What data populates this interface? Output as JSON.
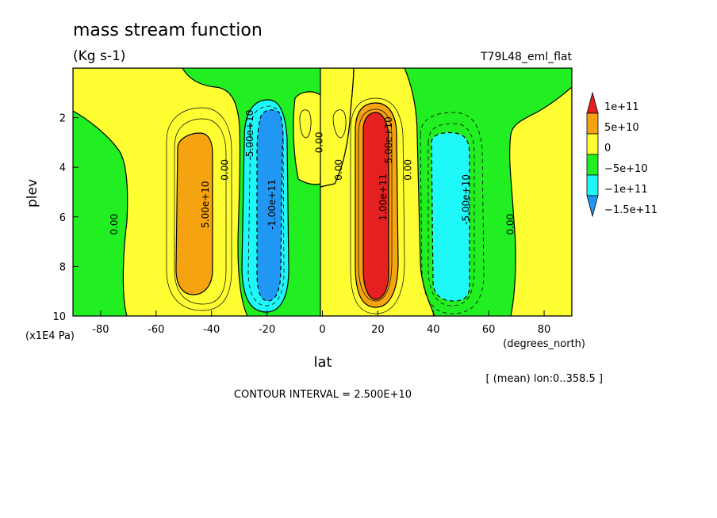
{
  "chart_data": {
    "type": "heatmap",
    "title": "mass stream function",
    "units": "(Kg s-1)",
    "experiment": "T79L48_eml_flat",
    "xlabel": "lat",
    "xunits": "(degrees_north)",
    "ylabel": "plev",
    "yunits": "(x1E4 Pa)",
    "xlim": [
      -90,
      90
    ],
    "ylim": [
      10,
      0
    ],
    "xticks": [
      -80,
      -60,
      -40,
      -20,
      0,
      20,
      40,
      60,
      80
    ],
    "yticks": [
      2,
      4,
      6,
      8,
      10
    ],
    "averaging_note": "[ (mean) lon:0..358.5 ]",
    "contour_interval_label": "CONTOUR INTERVAL = 2.500E+10",
    "colorbar": {
      "labels": [
        "1e+11",
        "5e+10",
        "0",
        "−5e+10",
        "−1e+11",
        "−1.5e+11"
      ],
      "colors": [
        "#e52020",
        "#f5a311",
        "#fefe33",
        "#21ef21",
        "#1ff8f8",
        "#2097f3"
      ]
    },
    "features": [
      {
        "kind": "zero",
        "lat": 0,
        "plev": 0.5,
        "label": "0.00"
      },
      {
        "kind": "min",
        "lat": -18,
        "plev": 5.5,
        "value": -100000000000.0,
        "label": "-1.00e+11"
      },
      {
        "kind": "max",
        "lat": -42,
        "plev": 5.5,
        "value": 75000000000.0,
        "label": "5.00e+10"
      },
      {
        "kind": "max",
        "lat": 20,
        "plev": 5.0,
        "value": 120000000000.0,
        "label": "1.00e+11"
      },
      {
        "kind": "min",
        "lat": 45,
        "plev": 5.5,
        "value": -75000000000.0,
        "label": "-5.00e+10"
      }
    ],
    "contour_labels": [
      {
        "text": "0.00",
        "lat": -74,
        "plev": 6.3
      },
      {
        "text": "0.00",
        "lat": -34,
        "plev": 4.1
      },
      {
        "text": "5.00e+10",
        "lat": -41,
        "plev": 5.5
      },
      {
        "text": "-5.00e+10",
        "lat": -25,
        "plev": 2.7
      },
      {
        "text": "-1.00e+11",
        "lat": -17,
        "plev": 5.5
      },
      {
        "text": "0.00",
        "lat": 0,
        "plev": 3.0
      },
      {
        "text": "0.00",
        "lat": 7,
        "plev": 4.1
      },
      {
        "text": "5.00e+10",
        "lat": 25,
        "plev": 2.9
      },
      {
        "text": "1.00e+11",
        "lat": 23,
        "plev": 5.2
      },
      {
        "text": "0.00",
        "lat": 32,
        "plev": 4.1
      },
      {
        "text": "-5.00e+10",
        "lat": 53,
        "plev": 5.3
      },
      {
        "text": "0.00",
        "lat": 69,
        "plev": 6.3
      }
    ]
  }
}
